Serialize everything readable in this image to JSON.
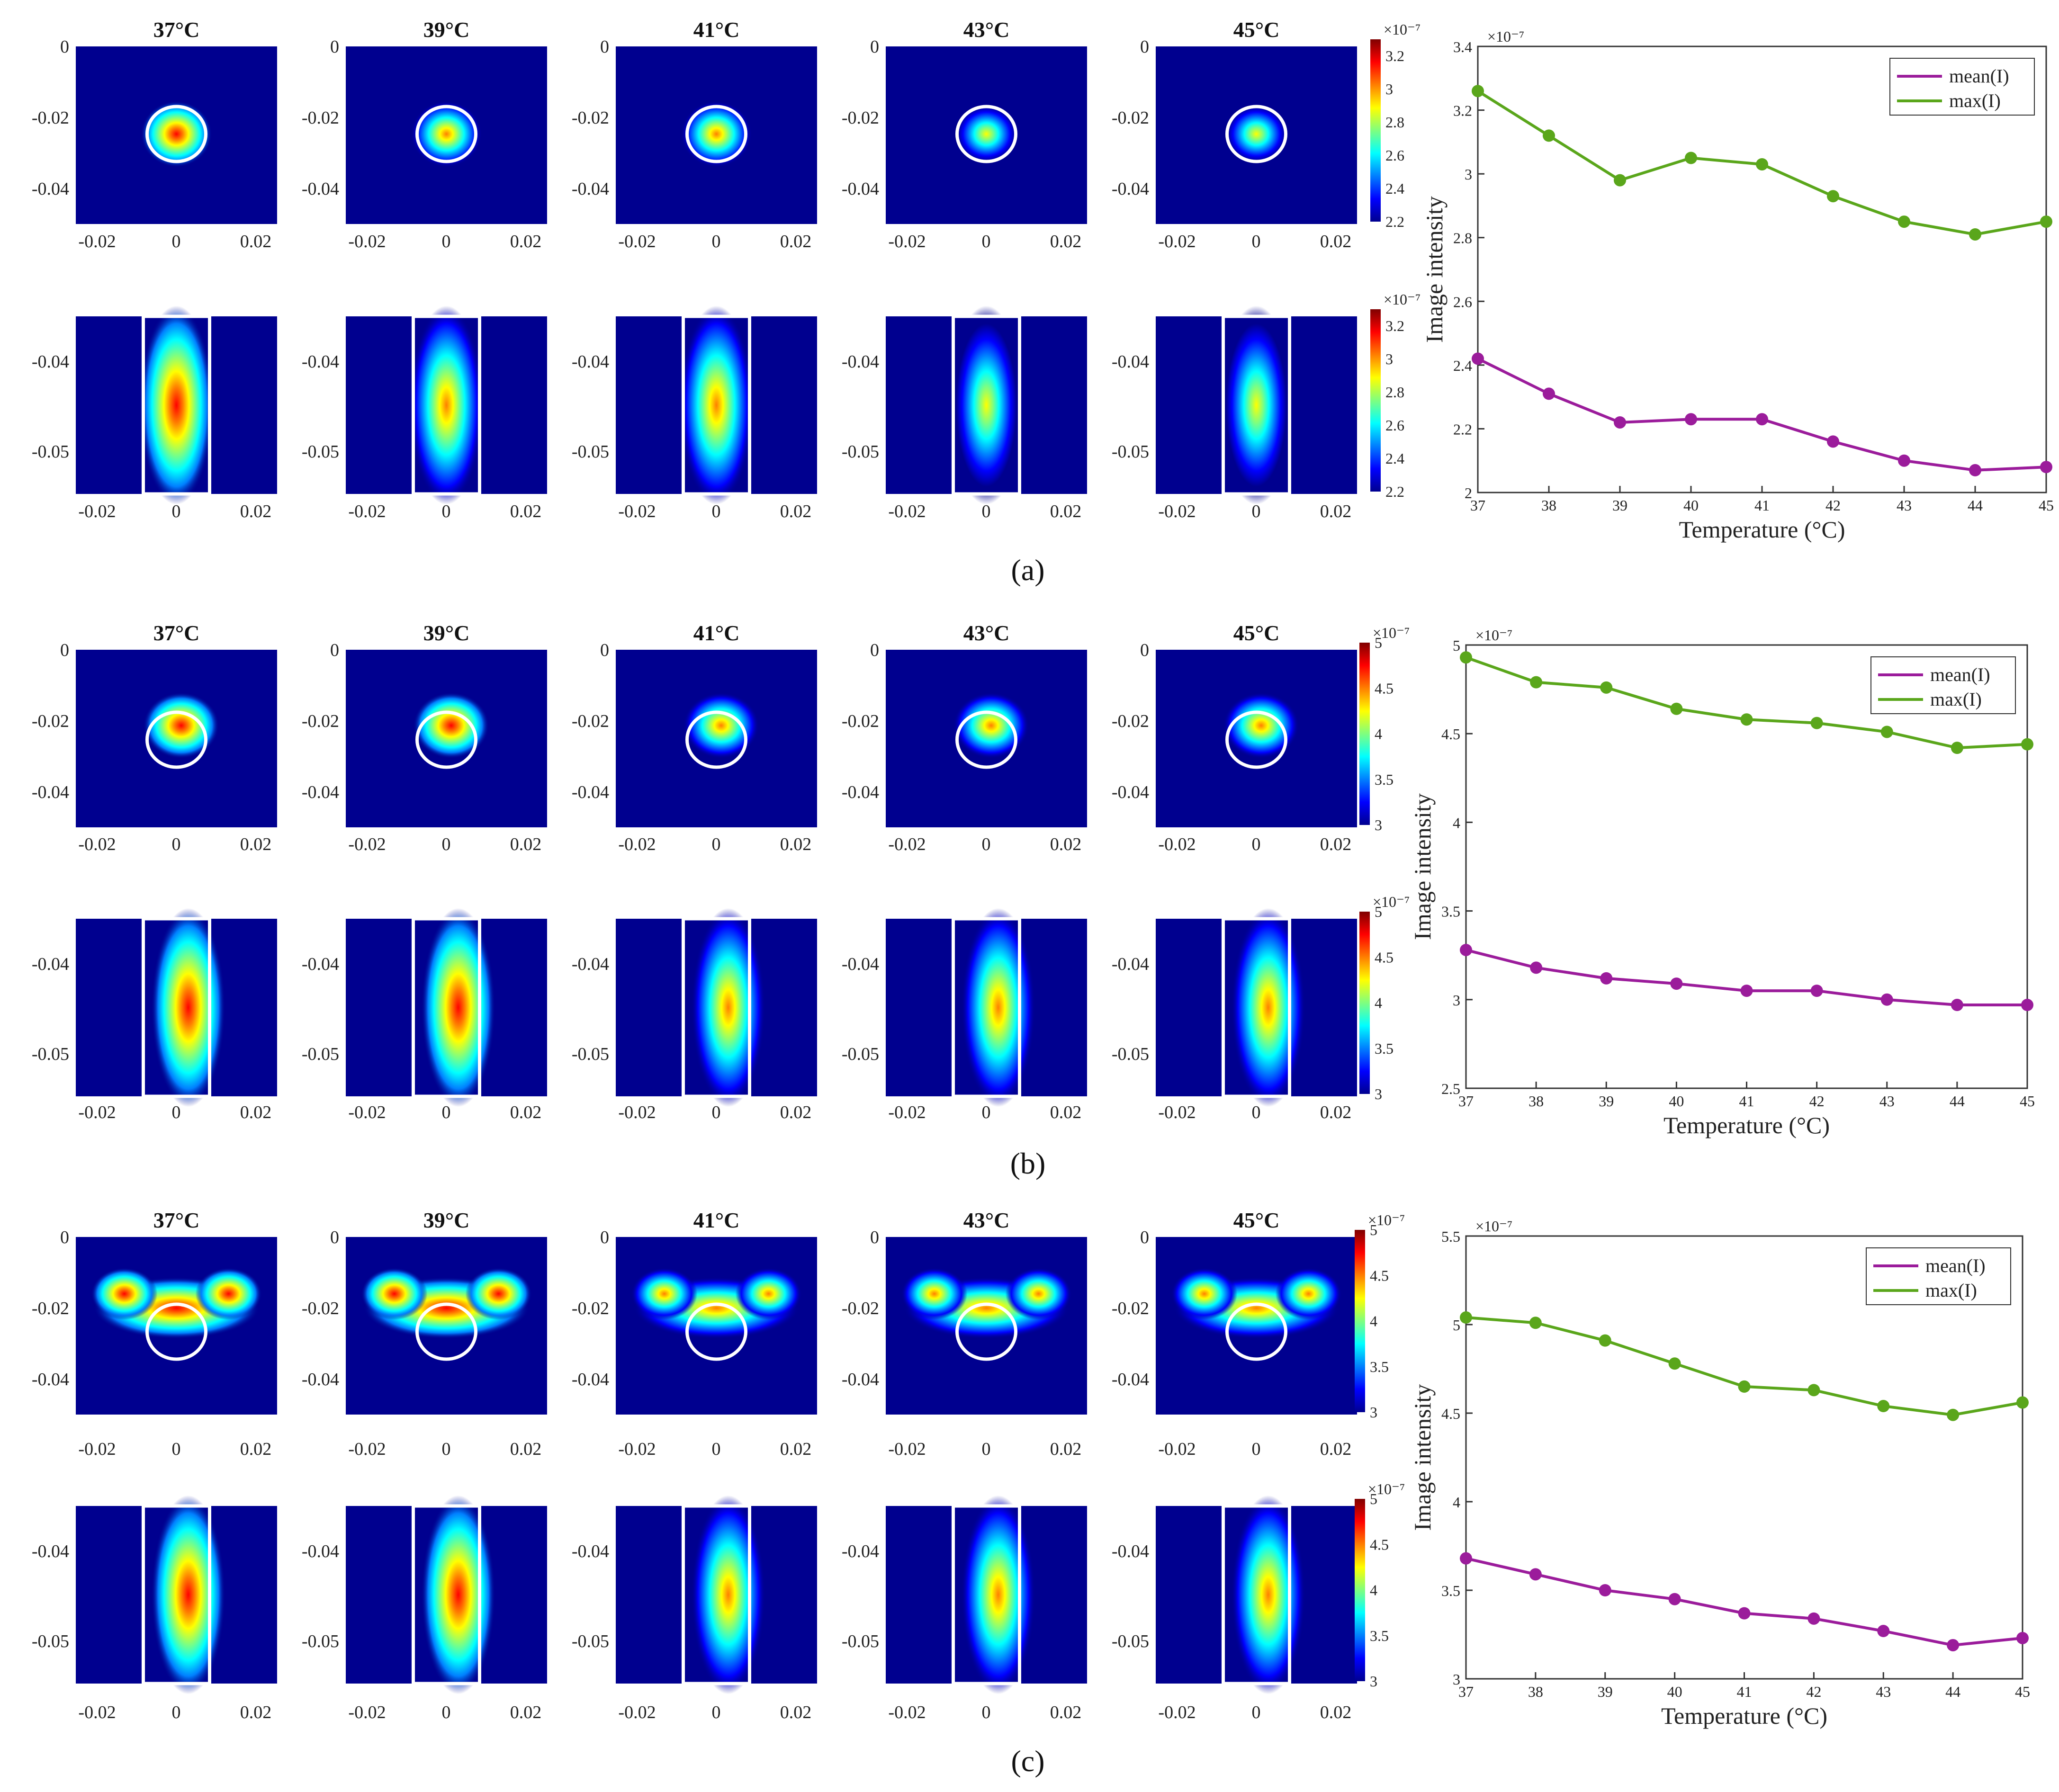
{
  "colormap": [
    "#00008f",
    "#0000ff",
    "#007fff",
    "#00ffff",
    "#7fff7f",
    "#ffff00",
    "#ff7f00",
    "#ff0000",
    "#800000"
  ],
  "series_colors": {
    "mean": "#9b1c9b",
    "max": "#5aa61b"
  },
  "panel_labels": [
    "(a)",
    "(b)",
    "(c)"
  ],
  "chart_data": [
    {
      "panel": "(a)",
      "heatmaps": {
        "temperatures": [
          "37°C",
          "39°C",
          "41°C",
          "43°C",
          "45°C"
        ],
        "intensity_fraction": [
          1.0,
          0.8,
          0.72,
          0.62,
          0.6
        ],
        "top_row": {
          "shape": "spot",
          "x_ticks": [
            "-0.02",
            "0",
            "0.02"
          ],
          "y_ticks": [
            "0",
            "-0.02",
            "-0.04"
          ]
        },
        "bottom_row": {
          "shape": "ellipse",
          "x_ticks": [
            "-0.02",
            "0",
            "0.02"
          ],
          "y_ticks": [
            "-0.04",
            "-0.05"
          ]
        },
        "colorbar": {
          "exponent": "×10⁻⁷",
          "ticks": [
            "3.2",
            "3",
            "2.8",
            "2.6",
            "2.4",
            "2.2"
          ],
          "range": [
            2.2,
            3.3
          ]
        }
      },
      "line_chart": {
        "type": "line",
        "x": [
          37,
          38,
          39,
          40,
          41,
          42,
          43,
          44,
          45
        ],
        "series": [
          {
            "name": "mean(I)",
            "values": [
              2.42,
              2.31,
              2.22,
              2.23,
              2.23,
              2.16,
              2.1,
              2.07,
              2.08
            ]
          },
          {
            "name": "max(I)",
            "values": [
              3.26,
              3.12,
              2.98,
              3.05,
              3.03,
              2.93,
              2.85,
              2.81,
              2.85
            ]
          }
        ],
        "ylim": [
          2,
          3.4
        ],
        "y_ticks": [
          "3.4",
          "3.2",
          "3",
          "2.8",
          "2.6",
          "2.4",
          "2.2",
          "2"
        ],
        "x_ticks": [
          "37",
          "38",
          "39",
          "40",
          "41",
          "42",
          "43",
          "44",
          "45"
        ],
        "exponent": "×10⁻⁷",
        "xlabel": "Temperature (°C)",
        "ylabel": "Image intensity",
        "legend": "top-right"
      }
    },
    {
      "panel": "(b)",
      "heatmaps": {
        "temperatures": [
          "37°C",
          "39°C",
          "41°C",
          "43°C",
          "45°C"
        ],
        "intensity_fraction": [
          1.0,
          0.92,
          0.84,
          0.8,
          0.76
        ],
        "top_row": {
          "shape": "shifted-spot",
          "x_ticks": [
            "-0.02",
            "0",
            "0.02"
          ],
          "y_ticks": [
            "0",
            "-0.02",
            "-0.04"
          ]
        },
        "bottom_row": {
          "shape": "ellipse",
          "x_ticks": [
            "-0.02",
            "0",
            "0.02"
          ],
          "y_ticks": [
            "-0.04",
            "-0.05"
          ]
        },
        "colorbar": {
          "exponent": "×10⁻⁷",
          "ticks": [
            "5",
            "4.5",
            "4",
            "3.5",
            "3"
          ],
          "range": [
            3,
            5
          ]
        }
      },
      "line_chart": {
        "type": "line",
        "x": [
          37,
          38,
          39,
          40,
          41,
          42,
          43,
          44,
          45
        ],
        "series": [
          {
            "name": "mean(I)",
            "values": [
              3.28,
              3.18,
              3.12,
              3.09,
              3.05,
              3.05,
              3.0,
              2.97,
              2.97
            ]
          },
          {
            "name": "max(I)",
            "values": [
              4.93,
              4.79,
              4.76,
              4.64,
              4.58,
              4.56,
              4.51,
              4.42,
              4.44
            ]
          }
        ],
        "ylim": [
          2.5,
          5
        ],
        "y_ticks": [
          "5",
          "4.5",
          "4",
          "3.5",
          "3",
          "2.5"
        ],
        "x_ticks": [
          "37",
          "38",
          "39",
          "40",
          "41",
          "42",
          "43",
          "44",
          "45"
        ],
        "exponent": "×10⁻⁷",
        "xlabel": "Temperature (°C)",
        "ylabel": "Image intensity",
        "legend": "top-right"
      }
    },
    {
      "panel": "(c)",
      "heatmaps": {
        "temperatures": [
          "37°C",
          "39°C",
          "41°C",
          "43°C",
          "45°C"
        ],
        "intensity_fraction": [
          1.0,
          0.94,
          0.84,
          0.76,
          0.72
        ],
        "top_row": {
          "shape": "crescent",
          "x_ticks": [
            "-0.02",
            "0",
            "0.02"
          ],
          "y_ticks": [
            "0",
            "-0.02",
            "-0.04"
          ]
        },
        "bottom_row": {
          "shape": "ellipse",
          "x_ticks": [
            "-0.02",
            "0",
            "0.02"
          ],
          "y_ticks": [
            "-0.04",
            "-0.05"
          ]
        },
        "colorbar": {
          "exponent": "×10⁻⁷",
          "ticks": [
            "5",
            "4.5",
            "4",
            "3.5",
            "3"
          ],
          "range": [
            3,
            5
          ]
        }
      },
      "line_chart": {
        "type": "line",
        "x": [
          37,
          38,
          39,
          40,
          41,
          42,
          43,
          44,
          45
        ],
        "series": [
          {
            "name": "mean(I)",
            "values": [
              3.68,
              3.59,
              3.5,
              3.45,
              3.37,
              3.34,
              3.27,
              3.19,
              3.23
            ]
          },
          {
            "name": "max(I)",
            "values": [
              5.04,
              5.01,
              4.91,
              4.78,
              4.65,
              4.63,
              4.54,
              4.49,
              4.56
            ]
          }
        ],
        "ylim": [
          3,
          5.5
        ],
        "y_ticks": [
          "5.5",
          "5",
          "4.5",
          "4",
          "3.5",
          "3"
        ],
        "x_ticks": [
          "37",
          "38",
          "39",
          "40",
          "41",
          "42",
          "43",
          "44",
          "45"
        ],
        "exponent": "×10⁻⁷",
        "xlabel": "Temperature (°C)",
        "ylabel": "Image intensity",
        "legend": "top-right"
      }
    }
  ]
}
